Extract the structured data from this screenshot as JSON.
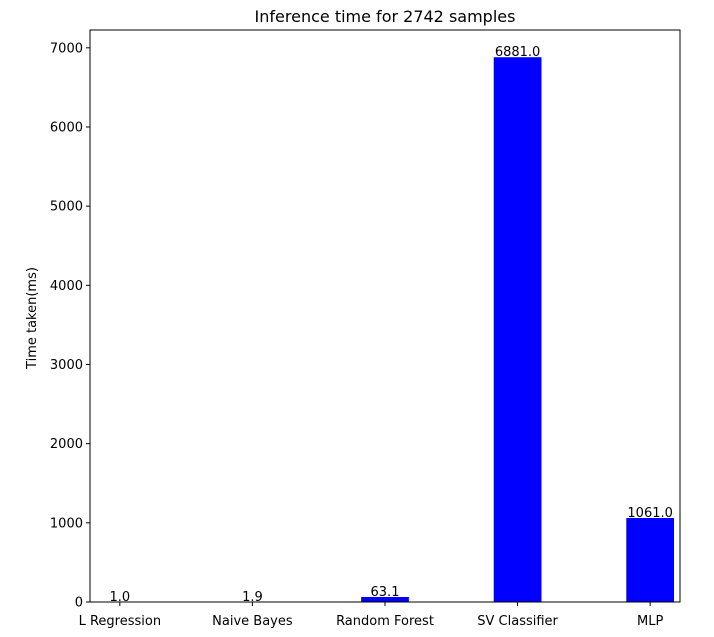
{
  "chart_data": {
    "type": "bar",
    "title": "Inference time for 2742 samples",
    "xlabel": "",
    "ylabel": "Time taken(ms)",
    "categories": [
      "L Regression",
      "Naive Bayes",
      "Random Forest",
      "SV Classifier",
      "MLP"
    ],
    "values": [
      1.0,
      1.9,
      63.1,
      6881.0,
      1061.0
    ],
    "data_labels": [
      "1.0",
      "1.9",
      "63.1",
      "6881.0",
      "1061.0"
    ],
    "ylim": [
      0,
      7225
    ],
    "yticks": [
      0,
      1000,
      2000,
      3000,
      4000,
      5000,
      6000,
      7000
    ],
    "bar_color": "#0000ff",
    "grid": false,
    "legend": "none"
  }
}
